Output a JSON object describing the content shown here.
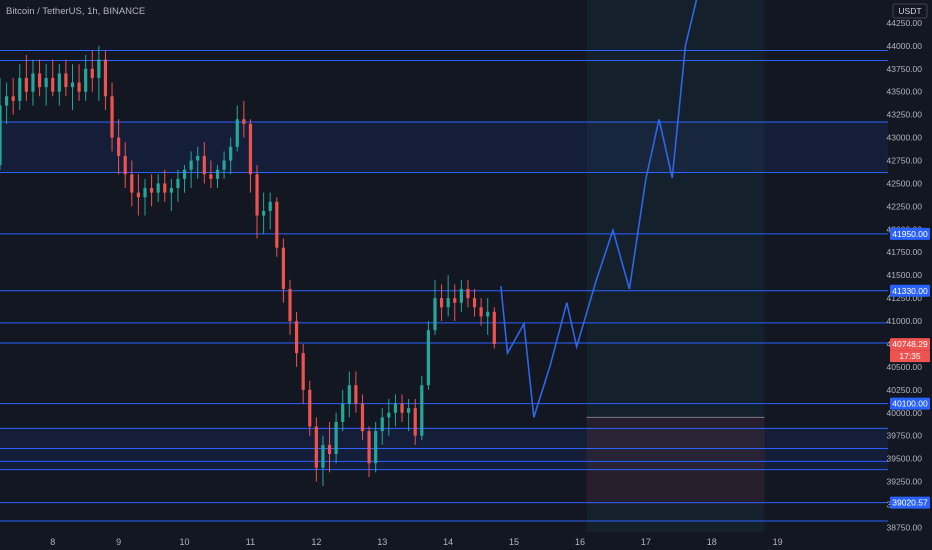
{
  "header": {
    "title": "Bitcoin / TetherUS, 1h, BINANCE",
    "currency": "USDT"
  },
  "colors": {
    "background": "#131722",
    "up": "#26a69a",
    "down": "#ef5350",
    "level_line": "#2962ff",
    "projection": "#2f66e8",
    "grid_text": "#b2b5be"
  },
  "chart_data": {
    "type": "candlestick",
    "symbol": "Bitcoin / TetherUS",
    "interval": "1h",
    "exchange": "BINANCE",
    "y_ticks": [
      38750,
      39000,
      39250,
      39500,
      39750,
      40000,
      40250,
      40500,
      40750,
      41000,
      41250,
      41500,
      41750,
      42000,
      42250,
      42500,
      42750,
      43000,
      43250,
      43500,
      43750,
      44000,
      44250
    ],
    "y_tick_labels": [
      "38750.00",
      "39000.00",
      "39250.00",
      "39500.00",
      "39750.00",
      "40000.00",
      "40250.00",
      "40500.00",
      "40750.00",
      "41000.00",
      "41250.00",
      "41500.00",
      "41750.00",
      "42000.00",
      "42250.00",
      "42500.00",
      "42750.00",
      "43000.00",
      "43250.00",
      "43500.00",
      "43750.00",
      "44000.00",
      "44250.00"
    ],
    "ylim": [
      38700,
      44500
    ],
    "x_ticks": [
      8,
      9,
      10,
      11,
      12,
      13,
      14,
      15,
      16,
      17,
      18,
      19
    ],
    "x_tick_labels": [
      "8",
      "9",
      "10",
      "11",
      "12",
      "13",
      "14",
      "15",
      "16",
      "17",
      "18",
      "19"
    ],
    "xlim": [
      7.2,
      20.0
    ],
    "horizontal_levels": [
      43950,
      43840,
      43170,
      42620,
      41950,
      41330,
      40980,
      40760,
      40100,
      39830,
      39610,
      39470,
      39380,
      39020,
      38820
    ],
    "price_badges": [
      {
        "label": "41950.00",
        "value": 41950,
        "kind": "level"
      },
      {
        "label": "41330.00",
        "value": 41330,
        "kind": "level"
      },
      {
        "label": "40748.29",
        "value": 40748.29,
        "kind": "last"
      },
      {
        "label": "17:35",
        "value": 40748.29,
        "kind": "countdown"
      },
      {
        "label": "40100.00",
        "value": 40100,
        "kind": "level"
      },
      {
        "label": "39020.57",
        "value": 39020.57,
        "kind": "level"
      }
    ],
    "last_price": 40748.29,
    "zones": [
      {
        "name": "resistance",
        "x0": 7.2,
        "x1": 20.0,
        "y0": 42620,
        "y1": 43170
      },
      {
        "name": "support",
        "x0": 7.2,
        "x1": 20.0,
        "y0": 39380,
        "y1": 39830
      },
      {
        "name": "future-highlight",
        "x0": 16.1,
        "x1": 18.8,
        "y0": 38700,
        "y1": 44500
      },
      {
        "name": "stop-box",
        "x0": 16.1,
        "x1": 18.8,
        "y0": 39000,
        "y1": 39950
      }
    ],
    "projection": [
      [
        14.8,
        41380
      ],
      [
        14.9,
        40650
      ],
      [
        15.15,
        40970
      ],
      [
        15.3,
        39950
      ],
      [
        15.55,
        40520
      ],
      [
        15.8,
        41200
      ],
      [
        15.95,
        40720
      ],
      [
        16.25,
        41450
      ],
      [
        16.5,
        41990
      ],
      [
        16.75,
        41350
      ],
      [
        17.0,
        42550
      ],
      [
        17.2,
        43200
      ],
      [
        17.4,
        42560
      ],
      [
        17.6,
        44000
      ],
      [
        17.8,
        44600
      ]
    ],
    "candles": [
      {
        "x": 7.2,
        "o": 42700,
        "h": 43650,
        "l": 42650,
        "c": 43350
      },
      {
        "x": 7.3,
        "o": 43350,
        "h": 43600,
        "l": 43150,
        "c": 43450
      },
      {
        "x": 7.4,
        "o": 43450,
        "h": 43650,
        "l": 43250,
        "c": 43400
      },
      {
        "x": 7.5,
        "o": 43400,
        "h": 43800,
        "l": 43300,
        "c": 43650
      },
      {
        "x": 7.6,
        "o": 43650,
        "h": 43900,
        "l": 43400,
        "c": 43500
      },
      {
        "x": 7.7,
        "o": 43500,
        "h": 43850,
        "l": 43350,
        "c": 43700
      },
      {
        "x": 7.8,
        "o": 43700,
        "h": 43850,
        "l": 43450,
        "c": 43550
      },
      {
        "x": 7.9,
        "o": 43550,
        "h": 43800,
        "l": 43350,
        "c": 43650
      },
      {
        "x": 8.0,
        "o": 43650,
        "h": 43850,
        "l": 43450,
        "c": 43500
      },
      {
        "x": 8.1,
        "o": 43500,
        "h": 43800,
        "l": 43350,
        "c": 43700
      },
      {
        "x": 8.2,
        "o": 43700,
        "h": 43850,
        "l": 43450,
        "c": 43550
      },
      {
        "x": 8.3,
        "o": 43550,
        "h": 43800,
        "l": 43300,
        "c": 43600
      },
      {
        "x": 8.4,
        "o": 43600,
        "h": 43800,
        "l": 43400,
        "c": 43500
      },
      {
        "x": 8.5,
        "o": 43500,
        "h": 43900,
        "l": 43400,
        "c": 43750
      },
      {
        "x": 8.6,
        "o": 43750,
        "h": 43950,
        "l": 43500,
        "c": 43650
      },
      {
        "x": 8.7,
        "o": 43650,
        "h": 44000,
        "l": 43400,
        "c": 43850
      },
      {
        "x": 8.8,
        "o": 43850,
        "h": 43950,
        "l": 43300,
        "c": 43450
      },
      {
        "x": 8.9,
        "o": 43450,
        "h": 43600,
        "l": 42850,
        "c": 43000
      },
      {
        "x": 9.0,
        "o": 43000,
        "h": 43200,
        "l": 42600,
        "c": 42800
      },
      {
        "x": 9.1,
        "o": 42800,
        "h": 42950,
        "l": 42450,
        "c": 42600
      },
      {
        "x": 9.2,
        "o": 42600,
        "h": 42750,
        "l": 42250,
        "c": 42400
      },
      {
        "x": 9.3,
        "o": 42400,
        "h": 42600,
        "l": 42150,
        "c": 42350
      },
      {
        "x": 9.4,
        "o": 42350,
        "h": 42550,
        "l": 42150,
        "c": 42450
      },
      {
        "x": 9.5,
        "o": 42450,
        "h": 42600,
        "l": 42250,
        "c": 42400
      },
      {
        "x": 9.6,
        "o": 42400,
        "h": 42600,
        "l": 42300,
        "c": 42500
      },
      {
        "x": 9.7,
        "o": 42500,
        "h": 42650,
        "l": 42300,
        "c": 42400
      },
      {
        "x": 9.8,
        "o": 42400,
        "h": 42550,
        "l": 42200,
        "c": 42450
      },
      {
        "x": 9.9,
        "o": 42450,
        "h": 42650,
        "l": 42300,
        "c": 42550
      },
      {
        "x": 10.0,
        "o": 42550,
        "h": 42700,
        "l": 42400,
        "c": 42650
      },
      {
        "x": 10.1,
        "o": 42650,
        "h": 42850,
        "l": 42450,
        "c": 42750
      },
      {
        "x": 10.2,
        "o": 42750,
        "h": 42900,
        "l": 42550,
        "c": 42800
      },
      {
        "x": 10.3,
        "o": 42800,
        "h": 42950,
        "l": 42500,
        "c": 42600
      },
      {
        "x": 10.4,
        "o": 42600,
        "h": 42750,
        "l": 42450,
        "c": 42550
      },
      {
        "x": 10.5,
        "o": 42550,
        "h": 42700,
        "l": 42450,
        "c": 42650
      },
      {
        "x": 10.6,
        "o": 42650,
        "h": 42850,
        "l": 42550,
        "c": 42750
      },
      {
        "x": 10.7,
        "o": 42750,
        "h": 43000,
        "l": 42600,
        "c": 42900
      },
      {
        "x": 10.8,
        "o": 42900,
        "h": 43350,
        "l": 42850,
        "c": 43200
      },
      {
        "x": 10.9,
        "o": 43200,
        "h": 43400,
        "l": 43000,
        "c": 43150
      },
      {
        "x": 11.0,
        "o": 43150,
        "h": 43200,
        "l": 42400,
        "c": 42600
      },
      {
        "x": 11.1,
        "o": 42600,
        "h": 42700,
        "l": 41900,
        "c": 42150
      },
      {
        "x": 11.2,
        "o": 42150,
        "h": 42400,
        "l": 41950,
        "c": 42200
      },
      {
        "x": 11.3,
        "o": 42200,
        "h": 42400,
        "l": 42000,
        "c": 42300
      },
      {
        "x": 11.4,
        "o": 42300,
        "h": 42350,
        "l": 41700,
        "c": 41800
      },
      {
        "x": 11.5,
        "o": 41800,
        "h": 41900,
        "l": 41200,
        "c": 41350
      },
      {
        "x": 11.6,
        "o": 41350,
        "h": 41450,
        "l": 40850,
        "c": 41000
      },
      {
        "x": 11.7,
        "o": 41000,
        "h": 41100,
        "l": 40500,
        "c": 40650
      },
      {
        "x": 11.8,
        "o": 40650,
        "h": 40750,
        "l": 40100,
        "c": 40250
      },
      {
        "x": 11.9,
        "o": 40250,
        "h": 40350,
        "l": 39750,
        "c": 39850
      },
      {
        "x": 12.0,
        "o": 39850,
        "h": 39950,
        "l": 39250,
        "c": 39400
      },
      {
        "x": 12.1,
        "o": 39400,
        "h": 39750,
        "l": 39200,
        "c": 39650
      },
      {
        "x": 12.2,
        "o": 39650,
        "h": 39900,
        "l": 39350,
        "c": 39550
      },
      {
        "x": 12.3,
        "o": 39550,
        "h": 40000,
        "l": 39450,
        "c": 39900
      },
      {
        "x": 12.4,
        "o": 39900,
        "h": 40250,
        "l": 39800,
        "c": 40100
      },
      {
        "x": 12.5,
        "o": 40100,
        "h": 40450,
        "l": 39950,
        "c": 40300
      },
      {
        "x": 12.6,
        "o": 40300,
        "h": 40450,
        "l": 40000,
        "c": 40100
      },
      {
        "x": 12.7,
        "o": 40100,
        "h": 40200,
        "l": 39700,
        "c": 39800
      },
      {
        "x": 12.8,
        "o": 39800,
        "h": 39850,
        "l": 39300,
        "c": 39450
      },
      {
        "x": 12.9,
        "o": 39450,
        "h": 39900,
        "l": 39350,
        "c": 39800
      },
      {
        "x": 13.0,
        "o": 39800,
        "h": 40050,
        "l": 39650,
        "c": 39950
      },
      {
        "x": 13.1,
        "o": 39950,
        "h": 40150,
        "l": 39750,
        "c": 40000
      },
      {
        "x": 13.2,
        "o": 40000,
        "h": 40200,
        "l": 39850,
        "c": 40100
      },
      {
        "x": 13.3,
        "o": 40100,
        "h": 40200,
        "l": 39900,
        "c": 40000
      },
      {
        "x": 13.4,
        "o": 40000,
        "h": 40150,
        "l": 39800,
        "c": 40050
      },
      {
        "x": 13.5,
        "o": 40050,
        "h": 40150,
        "l": 39650,
        "c": 39750
      },
      {
        "x": 13.6,
        "o": 39750,
        "h": 40400,
        "l": 39700,
        "c": 40300
      },
      {
        "x": 13.7,
        "o": 40300,
        "h": 41000,
        "l": 40250,
        "c": 40900
      },
      {
        "x": 13.8,
        "o": 40900,
        "h": 41450,
        "l": 40850,
        "c": 41250
      },
      {
        "x": 13.9,
        "o": 41250,
        "h": 41400,
        "l": 41000,
        "c": 41150
      },
      {
        "x": 14.0,
        "o": 41150,
        "h": 41500,
        "l": 41050,
        "c": 41250
      },
      {
        "x": 14.1,
        "o": 41250,
        "h": 41400,
        "l": 41000,
        "c": 41200
      },
      {
        "x": 14.2,
        "o": 41200,
        "h": 41450,
        "l": 41100,
        "c": 41350
      },
      {
        "x": 14.3,
        "o": 41350,
        "h": 41450,
        "l": 41150,
        "c": 41250
      },
      {
        "x": 14.4,
        "o": 41250,
        "h": 41350,
        "l": 41050,
        "c": 41150
      },
      {
        "x": 14.5,
        "o": 41150,
        "h": 41250,
        "l": 40950,
        "c": 41050
      },
      {
        "x": 14.6,
        "o": 41050,
        "h": 41250,
        "l": 40850,
        "c": 41100
      },
      {
        "x": 14.7,
        "o": 41100,
        "h": 41150,
        "l": 40700,
        "c": 40750
      }
    ]
  }
}
